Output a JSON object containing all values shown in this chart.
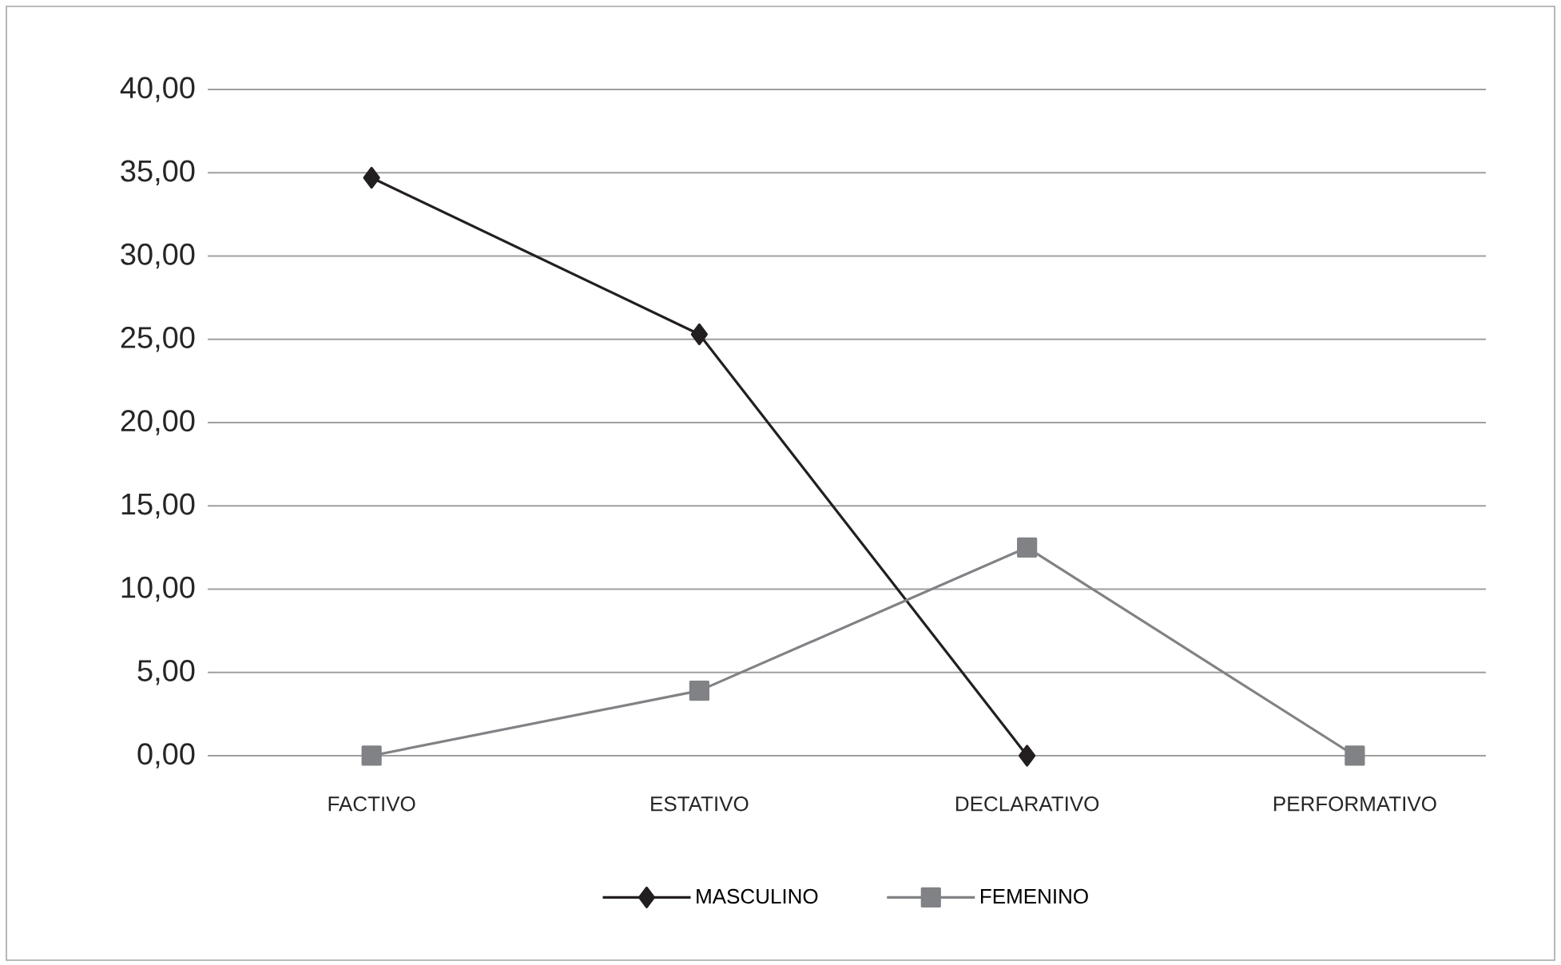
{
  "chart_data": {
    "type": "line",
    "categories": [
      "FACTIVO",
      "ESTATIVO",
      "DECLARATIVO",
      "PERFORMATIVO"
    ],
    "series": [
      {
        "name": "MASCULINO",
        "color": "#231f20",
        "marker": "diamond",
        "values": [
          34.7,
          25.3,
          0,
          null
        ]
      },
      {
        "name": "FEMENINO",
        "color": "#808285",
        "marker": "square",
        "values": [
          0,
          3.9,
          12.5,
          0
        ]
      }
    ],
    "ylim": [
      0,
      40
    ],
    "yticks": [
      {
        "value": 0,
        "label": "0,00"
      },
      {
        "value": 5,
        "label": "5,00"
      },
      {
        "value": 10,
        "label": "10,00"
      },
      {
        "value": 15,
        "label": "15,00"
      },
      {
        "value": 20,
        "label": "20,00"
      },
      {
        "value": 25,
        "label": "25,00"
      },
      {
        "value": 30,
        "label": "30,00"
      },
      {
        "value": 35,
        "label": "35,00"
      },
      {
        "value": 40,
        "label": "40,00"
      }
    ],
    "grid": "y",
    "legend": "bottom",
    "line_style": "solid"
  }
}
